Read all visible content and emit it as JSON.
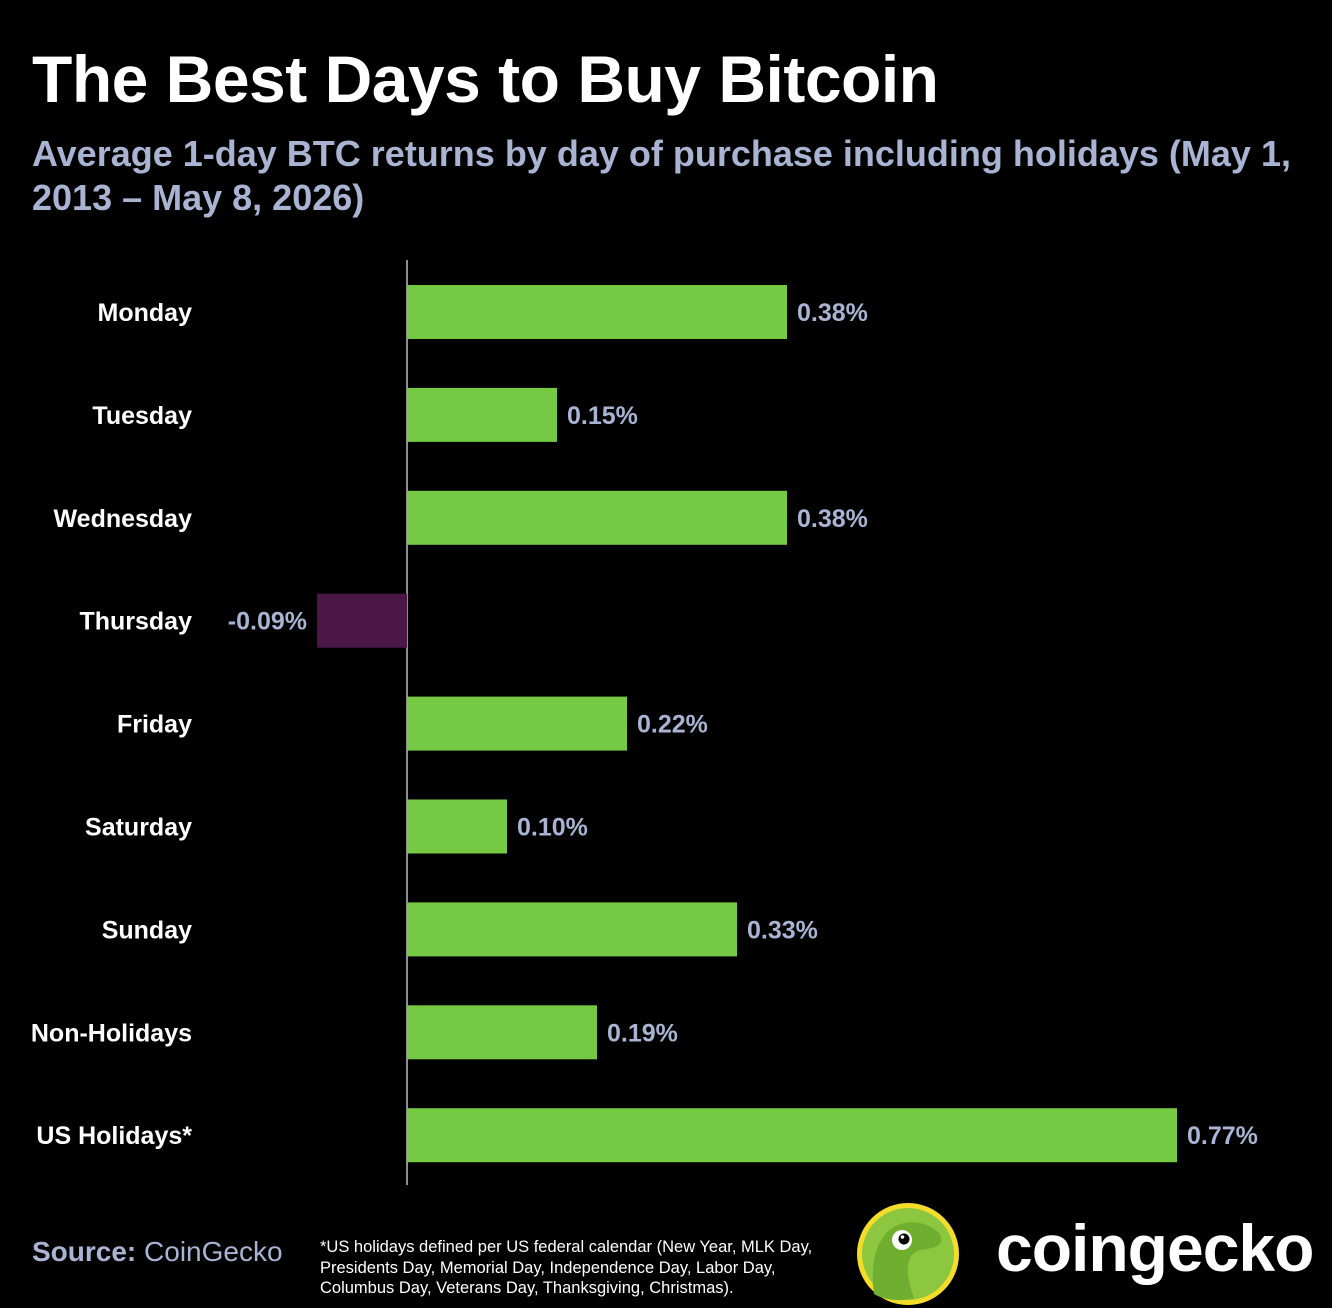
{
  "header": {
    "title": "The Best Days to Buy Bitcoin",
    "subtitle": "Average 1-day BTC returns by day of purchase including holidays (May 1, 2013 – May 8, 2026)"
  },
  "chart_data": {
    "type": "bar",
    "orientation": "horizontal",
    "categories": [
      "Monday",
      "Tuesday",
      "Wednesday",
      "Thursday",
      "Friday",
      "Saturday",
      "Sunday",
      "Non-Holidays",
      "US Holidays*"
    ],
    "values": [
      0.38,
      0.15,
      0.38,
      -0.09,
      0.22,
      0.1,
      0.33,
      0.19,
      0.77
    ],
    "value_labels": [
      "0.38%",
      "0.15%",
      "0.38%",
      "-0.09%",
      "0.22%",
      "0.10%",
      "0.33%",
      "0.19%",
      "0.77%"
    ],
    "title": "The Best Days to Buy Bitcoin",
    "subtitle": "Average 1-day BTC returns by day of purchase including holidays (May 1, 2013 – May 8, 2026)",
    "xlabel": "",
    "ylabel": "",
    "xlim": [
      -0.09,
      0.77
    ],
    "grid": false,
    "legend": "none",
    "colors": {
      "positive": "#76c943",
      "negative": "#4a1747"
    }
  },
  "footer": {
    "source_key": "Source:",
    "source_value": "CoinGecko",
    "footnote": "*US holidays defined per US federal calendar (New Year, MLK Day, Presidents Day, Memorial Day, Independence Day, Labor Day, Columbus Day, Veterans Day, Thanksgiving, Christmas).",
    "brand": "coingecko"
  },
  "icons": {
    "logo": "coingecko-gecko-logo-icon"
  },
  "colors": {
    "background": "#000000",
    "title": "#ffffff",
    "subtitle": "#a9b4d3",
    "logo_circle": "#8dc63f"
  }
}
